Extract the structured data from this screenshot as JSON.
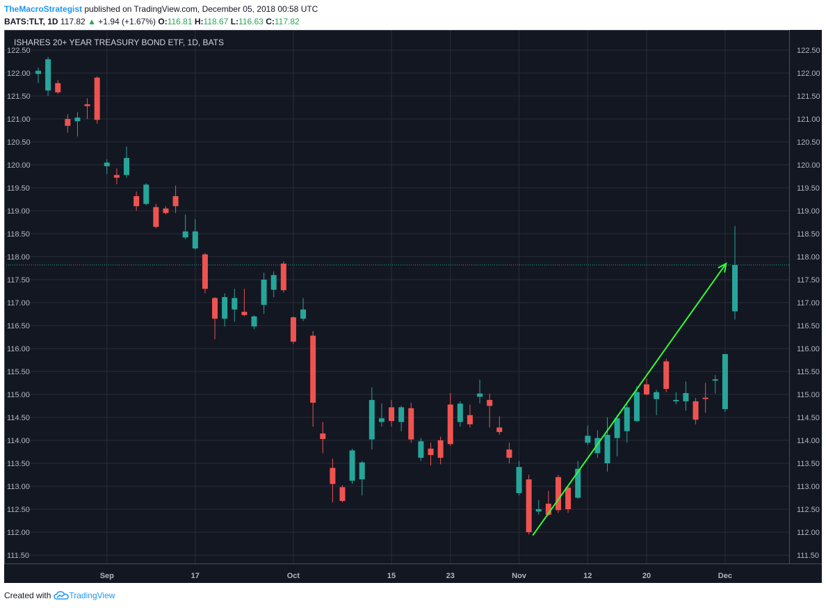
{
  "header": {
    "author": "TheMacroStrategist",
    "published_text": "published on TradingView.com, December 05, 2018 00:58 UTC",
    "symbol": "BATS:TLT, 1D",
    "last": "117.82",
    "up_arrow": "▲",
    "change": "+1.94 (+1.67%)",
    "o_label": "O:",
    "o_value": "116.81",
    "h_label": "H:",
    "h_value": "118.67",
    "l_label": "L:",
    "l_value": "116.63",
    "c_label": "C:",
    "c_value": "117.82"
  },
  "footer": {
    "created_with": "Created with",
    "brand": "TradingView"
  },
  "colors": {
    "background": "#131722",
    "grid": "#2a2e39",
    "up": "#26a69a",
    "down": "#ef5350",
    "arrow": "#33ff33",
    "price_line": "#26a69a",
    "axis_text": "#b2b5be",
    "border": "#4a4e59"
  },
  "chart_data": {
    "type": "candlestick",
    "title": "ISHARES 20+ YEAR TREASURY BOND ETF, 1D, BATS",
    "ylim": [
      111.3,
      122.9
    ],
    "xlim": [
      0.5,
      80.5
    ],
    "yticks": [
      "122.50",
      "122.00",
      "121.50",
      "121.00",
      "120.50",
      "120.00",
      "119.50",
      "119.00",
      "118.50",
      "118.00",
      "117.50",
      "117.00",
      "116.50",
      "116.00",
      "115.50",
      "115.00",
      "114.50",
      "114.00",
      "113.50",
      "113.00",
      "112.50",
      "112.00",
      "111.50"
    ],
    "xticks": [
      {
        "label": "Sep",
        "x": 8
      },
      {
        "label": "17",
        "x": 17
      },
      {
        "label": "Oct",
        "x": 27
      },
      {
        "label": "15",
        "x": 37
      },
      {
        "label": "23",
        "x": 43
      },
      {
        "label": "Nov",
        "x": 50
      },
      {
        "label": "12",
        "x": 57
      },
      {
        "label": "20",
        "x": 63
      },
      {
        "label": "Dec",
        "x": 71
      }
    ],
    "current_price": 117.82,
    "candles": [
      {
        "x": 1,
        "o": 121.98,
        "h": 122.12,
        "l": 121.78,
        "c": 122.05
      },
      {
        "x": 2,
        "o": 121.62,
        "h": 122.35,
        "l": 121.5,
        "c": 122.3
      },
      {
        "x": 3,
        "o": 121.78,
        "h": 121.85,
        "l": 121.55,
        "c": 121.58
      },
      {
        "x": 4,
        "o": 121.0,
        "h": 121.1,
        "l": 120.7,
        "c": 120.85
      },
      {
        "x": 5,
        "o": 120.95,
        "h": 121.15,
        "l": 120.62,
        "c": 121.03
      },
      {
        "x": 6,
        "o": 121.32,
        "h": 121.45,
        "l": 121.0,
        "c": 121.28
      },
      {
        "x": 7,
        "o": 121.9,
        "h": 121.93,
        "l": 120.9,
        "c": 120.98
      },
      {
        "x": 8,
        "o": 119.97,
        "h": 120.12,
        "l": 119.8,
        "c": 120.05
      },
      {
        "x": 9,
        "o": 119.78,
        "h": 119.92,
        "l": 119.58,
        "c": 119.72
      },
      {
        "x": 10,
        "o": 119.78,
        "h": 120.4,
        "l": 119.72,
        "c": 120.15
      },
      {
        "x": 11,
        "o": 119.32,
        "h": 119.42,
        "l": 119.0,
        "c": 119.1
      },
      {
        "x": 12,
        "o": 119.15,
        "h": 119.6,
        "l": 119.12,
        "c": 119.57
      },
      {
        "x": 13,
        "o": 119.08,
        "h": 119.15,
        "l": 118.62,
        "c": 118.65
      },
      {
        "x": 14,
        "o": 119.05,
        "h": 119.1,
        "l": 118.92,
        "c": 118.95
      },
      {
        "x": 15,
        "o": 119.32,
        "h": 119.55,
        "l": 118.95,
        "c": 119.1
      },
      {
        "x": 16,
        "o": 118.42,
        "h": 118.92,
        "l": 118.38,
        "c": 118.55
      },
      {
        "x": 17,
        "o": 118.18,
        "h": 118.82,
        "l": 118.15,
        "c": 118.55
      },
      {
        "x": 18,
        "o": 118.05,
        "h": 118.08,
        "l": 117.2,
        "c": 117.3
      },
      {
        "x": 19,
        "o": 117.1,
        "h": 117.12,
        "l": 116.2,
        "c": 116.65
      },
      {
        "x": 20,
        "o": 116.65,
        "h": 117.2,
        "l": 116.48,
        "c": 117.12
      },
      {
        "x": 21,
        "o": 116.85,
        "h": 117.3,
        "l": 116.58,
        "c": 117.1
      },
      {
        "x": 22,
        "o": 116.8,
        "h": 117.3,
        "l": 116.7,
        "c": 116.73
      },
      {
        "x": 23,
        "o": 116.48,
        "h": 116.72,
        "l": 116.42,
        "c": 116.7
      },
      {
        "x": 24,
        "o": 116.95,
        "h": 117.65,
        "l": 116.75,
        "c": 117.5
      },
      {
        "x": 25,
        "o": 117.28,
        "h": 117.68,
        "l": 117.12,
        "c": 117.6
      },
      {
        "x": 26,
        "o": 117.85,
        "h": 117.9,
        "l": 117.22,
        "c": 117.27
      },
      {
        "x": 27,
        "o": 116.68,
        "h": 116.7,
        "l": 116.1,
        "c": 116.15
      },
      {
        "x": 28,
        "o": 116.65,
        "h": 117.1,
        "l": 116.6,
        "c": 116.85
      },
      {
        "x": 29,
        "o": 116.28,
        "h": 116.38,
        "l": 114.3,
        "c": 114.82
      },
      {
        "x": 30,
        "o": 114.15,
        "h": 114.4,
        "l": 113.72,
        "c": 114.03
      },
      {
        "x": 31,
        "o": 113.4,
        "h": 113.6,
        "l": 112.65,
        "c": 113.05
      },
      {
        "x": 32,
        "o": 112.98,
        "h": 113.02,
        "l": 112.65,
        "c": 112.68
      },
      {
        "x": 33,
        "o": 113.12,
        "h": 113.82,
        "l": 113.05,
        "c": 113.78
      },
      {
        "x": 34,
        "o": 113.15,
        "h": 113.55,
        "l": 112.8,
        "c": 113.52
      },
      {
        "x": 35,
        "o": 114.02,
        "h": 115.15,
        "l": 113.8,
        "c": 114.88
      },
      {
        "x": 36,
        "o": 114.4,
        "h": 114.8,
        "l": 114.3,
        "c": 114.48
      },
      {
        "x": 37,
        "o": 114.72,
        "h": 114.88,
        "l": 114.3,
        "c": 114.42
      },
      {
        "x": 38,
        "o": 114.4,
        "h": 114.75,
        "l": 114.2,
        "c": 114.72
      },
      {
        "x": 39,
        "o": 114.7,
        "h": 114.82,
        "l": 113.95,
        "c": 114.02
      },
      {
        "x": 40,
        "o": 113.62,
        "h": 114.05,
        "l": 113.55,
        "c": 113.98
      },
      {
        "x": 41,
        "o": 113.82,
        "h": 113.95,
        "l": 113.45,
        "c": 113.68
      },
      {
        "x": 42,
        "o": 114.0,
        "h": 114.08,
        "l": 113.48,
        "c": 113.62
      },
      {
        "x": 43,
        "o": 114.78,
        "h": 115.03,
        "l": 113.88,
        "c": 113.92
      },
      {
        "x": 44,
        "o": 114.4,
        "h": 114.85,
        "l": 114.3,
        "c": 114.8
      },
      {
        "x": 45,
        "o": 114.55,
        "h": 114.78,
        "l": 114.28,
        "c": 114.35
      },
      {
        "x": 46,
        "o": 114.95,
        "h": 115.32,
        "l": 114.8,
        "c": 115.02
      },
      {
        "x": 47,
        "o": 114.88,
        "h": 115.02,
        "l": 114.28,
        "c": 114.75
      },
      {
        "x": 48,
        "o": 114.28,
        "h": 114.52,
        "l": 114.12,
        "c": 114.18
      },
      {
        "x": 49,
        "o": 113.8,
        "h": 113.95,
        "l": 113.5,
        "c": 113.62
      },
      {
        "x": 50,
        "o": 112.85,
        "h": 113.55,
        "l": 112.8,
        "c": 113.42
      },
      {
        "x": 51,
        "o": 113.15,
        "h": 113.25,
        "l": 111.95,
        "c": 112.0
      },
      {
        "x": 52,
        "o": 112.45,
        "h": 112.7,
        "l": 112.38,
        "c": 112.5
      },
      {
        "x": 53,
        "o": 112.62,
        "h": 112.9,
        "l": 112.35,
        "c": 112.38
      },
      {
        "x": 54,
        "o": 113.2,
        "h": 113.25,
        "l": 112.42,
        "c": 112.48
      },
      {
        "x": 55,
        "o": 112.97,
        "h": 113.0,
        "l": 112.42,
        "c": 112.5
      },
      {
        "x": 56,
        "o": 112.75,
        "h": 113.55,
        "l": 112.72,
        "c": 113.38
      },
      {
        "x": 57,
        "o": 113.95,
        "h": 114.32,
        "l": 113.9,
        "c": 114.1
      },
      {
        "x": 58,
        "o": 113.72,
        "h": 114.22,
        "l": 113.62,
        "c": 114.05
      },
      {
        "x": 59,
        "o": 113.5,
        "h": 114.5,
        "l": 113.32,
        "c": 114.12
      },
      {
        "x": 60,
        "o": 114.05,
        "h": 114.55,
        "l": 113.65,
        "c": 114.48
      },
      {
        "x": 61,
        "o": 114.2,
        "h": 114.82,
        "l": 113.95,
        "c": 114.72
      },
      {
        "x": 62,
        "o": 114.42,
        "h": 115.18,
        "l": 114.4,
        "c": 115.05
      },
      {
        "x": 63,
        "o": 115.22,
        "h": 115.35,
        "l": 114.98,
        "c": 115.0
      },
      {
        "x": 64,
        "o": 114.9,
        "h": 115.1,
        "l": 114.55,
        "c": 115.05
      },
      {
        "x": 65,
        "o": 115.72,
        "h": 115.78,
        "l": 115.05,
        "c": 115.12
      },
      {
        "x": 66,
        "o": 114.85,
        "h": 115.05,
        "l": 114.78,
        "c": 114.88
      },
      {
        "x": 67,
        "o": 114.85,
        "h": 115.28,
        "l": 114.65,
        "c": 115.03
      },
      {
        "x": 68,
        "o": 114.85,
        "h": 114.92,
        "l": 114.35,
        "c": 114.45
      },
      {
        "x": 69,
        "o": 114.93,
        "h": 115.25,
        "l": 114.6,
        "c": 114.9
      },
      {
        "x": 70,
        "o": 115.3,
        "h": 115.42,
        "l": 115.02,
        "c": 115.33
      },
      {
        "x": 71,
        "o": 114.68,
        "h": 115.88,
        "l": 114.62,
        "c": 115.88
      },
      {
        "x": 72,
        "o": 116.81,
        "h": 118.67,
        "l": 116.63,
        "c": 117.82
      }
    ],
    "annotation_arrow": {
      "x1": 51.4,
      "y1": 111.93,
      "x2": 71.1,
      "y2": 117.85
    }
  }
}
